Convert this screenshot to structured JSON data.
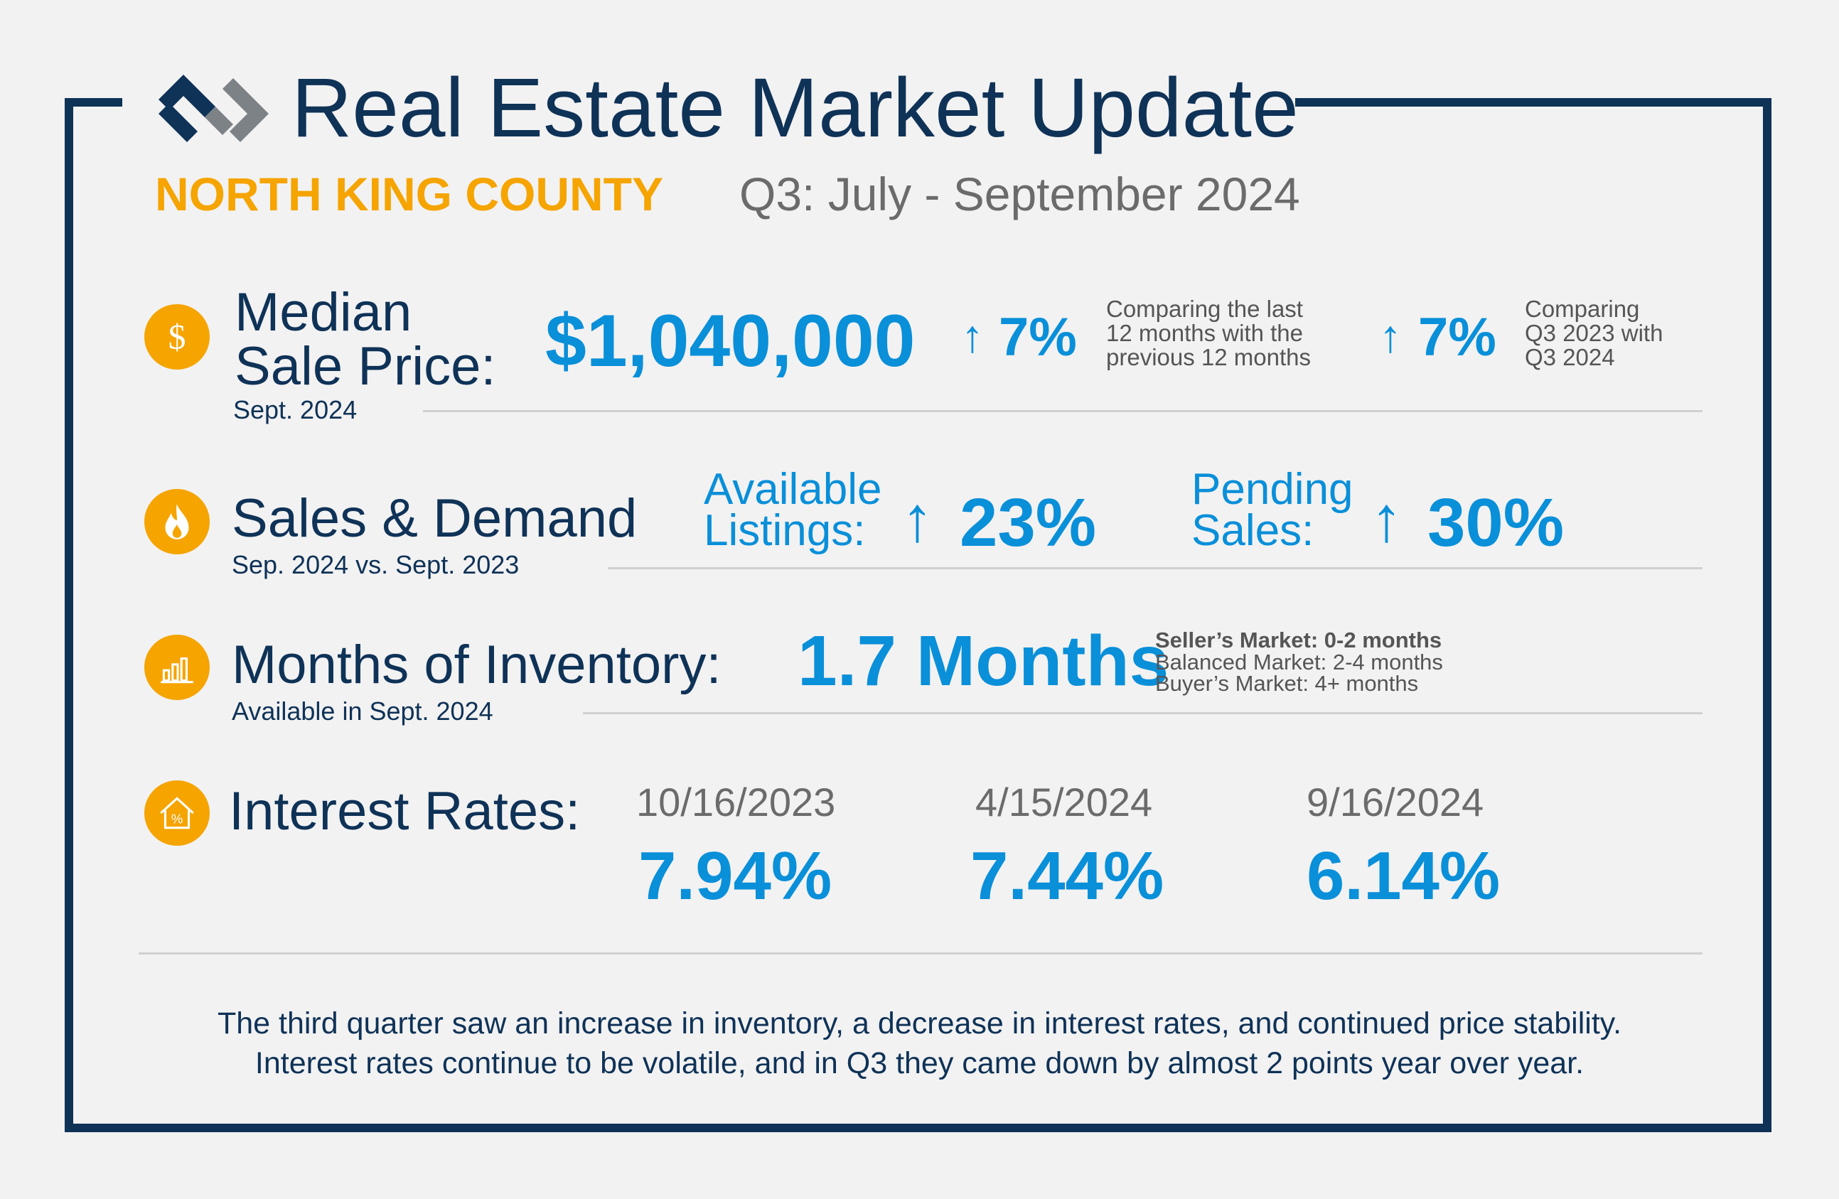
{
  "header": {
    "title": "Real Estate Market Update",
    "region": "NORTH KING COUNTY",
    "period": "Q3: July - September 2024"
  },
  "median": {
    "label_line1": "Median",
    "label_line2": "Sale Price:",
    "sub": "Sept. 2024",
    "value": "$1,040,000",
    "change1": "7%",
    "note1": [
      "Comparing the last",
      "12 months with the",
      "previous 12 months"
    ],
    "change2": "7%",
    "note2": [
      "Comparing",
      "Q3 2023 with",
      "Q3 2024"
    ]
  },
  "sales": {
    "label": "Sales & Demand",
    "sub": "Sep. 2024 vs. Sept. 2023",
    "listings_label": [
      "Available",
      "Listings:"
    ],
    "listings_change": "23%",
    "pending_label": [
      "Pending",
      "Sales:"
    ],
    "pending_change": "30%"
  },
  "inventory": {
    "label": "Months of Inventory:",
    "sub": "Available in Sept. 2024",
    "value": "1.7 Months",
    "legend": [
      "Seller’s Market: 0-2 months",
      "Balanced Market: 2-4 months",
      "Buyer’s Market: 4+ months"
    ]
  },
  "rates": {
    "label": "Interest Rates:",
    "items": [
      {
        "date": "10/16/2023",
        "rate": "7.94%"
      },
      {
        "date": "4/15/2024",
        "rate": "7.44%"
      },
      {
        "date": "9/16/2024",
        "rate": "6.14%"
      }
    ]
  },
  "footer": {
    "line1": "The third quarter saw an increase in inventory, a decrease in interest rates, and continued price stability.",
    "line2": "Interest rates continue to be volatile, and in Q3 they came down by almost 2 points year over year."
  },
  "colors": {
    "navy": "#0f3257",
    "gold": "#f5a400",
    "blue": "#0a8fd9",
    "gray": "#6b6b6b"
  },
  "icons": [
    "dollar-icon",
    "flame-icon",
    "bar-chart-icon",
    "house-percent-icon"
  ]
}
